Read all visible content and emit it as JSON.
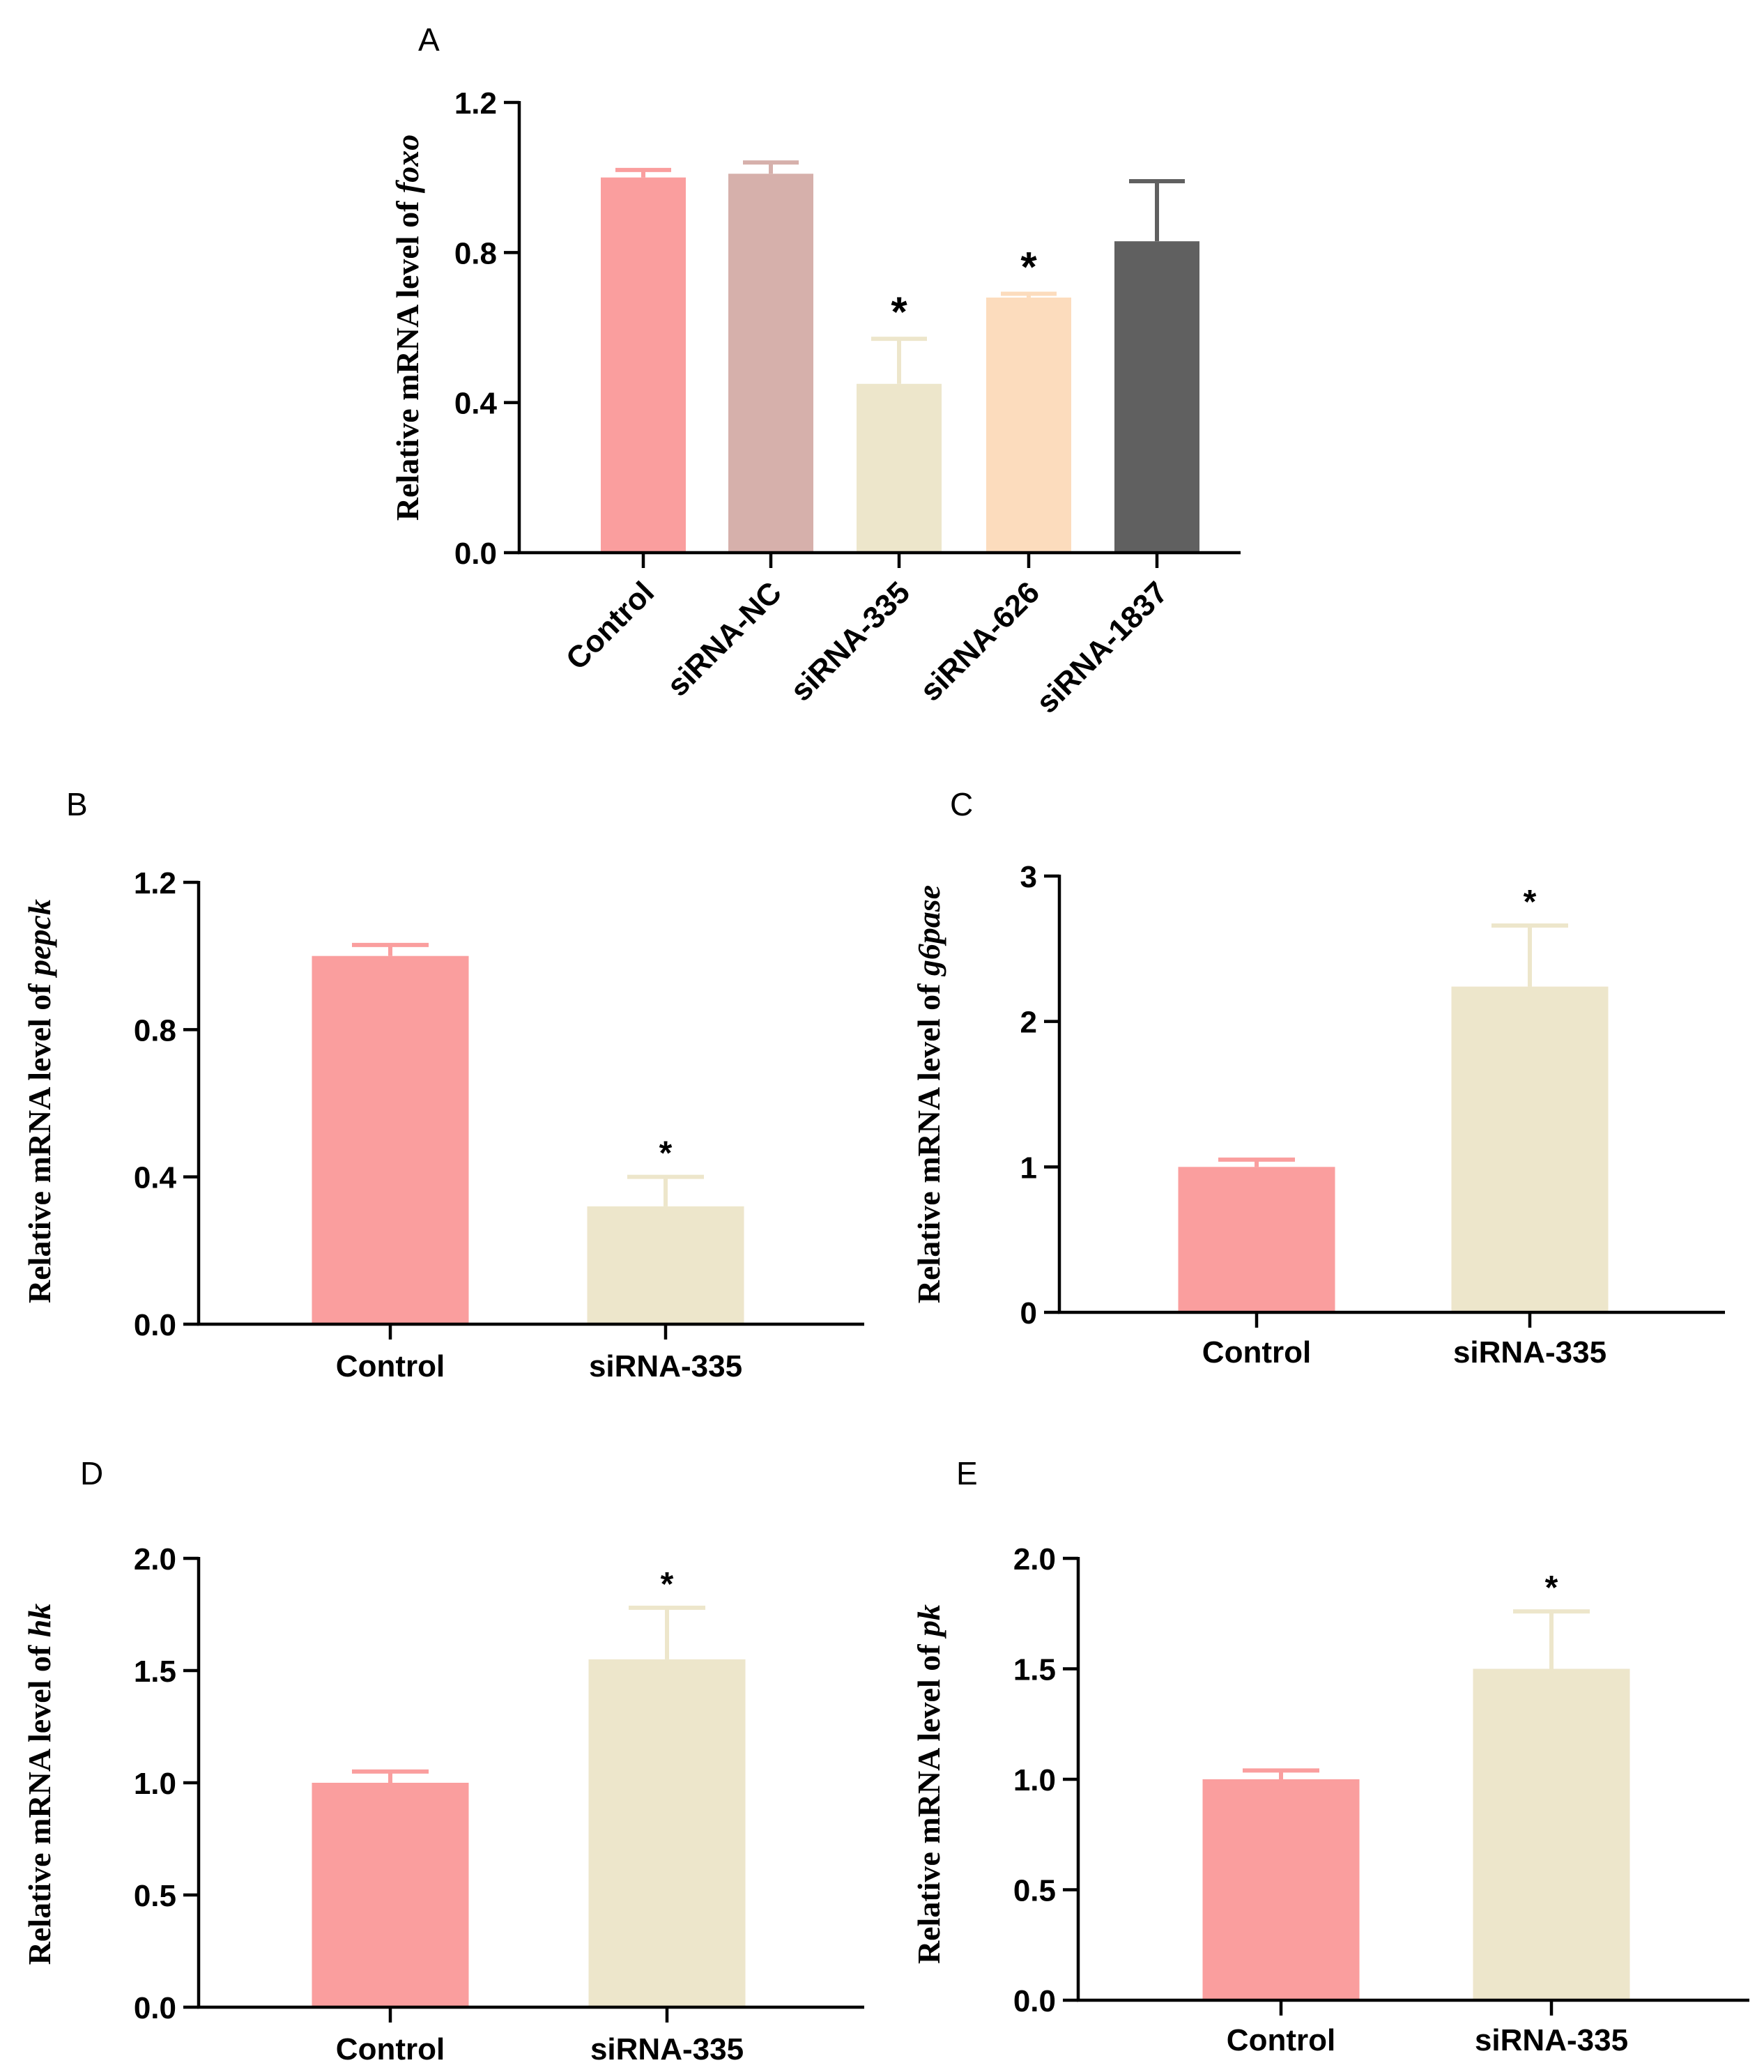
{
  "chart_data": [
    {
      "panel": "A",
      "type": "bar",
      "title": "",
      "xlabel": "",
      "ylabel_prefix": "Relative mRNA level of ",
      "ylabel_gene": "foxo",
      "categories": [
        "Control",
        "siRNA-NC",
        "siRNA-335",
        "siRNA-626",
        "siRNA-1837"
      ],
      "values": [
        1.0,
        1.01,
        0.45,
        0.68,
        0.83
      ],
      "errors": [
        0.02,
        0.03,
        0.12,
        0.01,
        0.16
      ],
      "significance": [
        "",
        "",
        "*",
        "*",
        ""
      ],
      "colors": [
        "#fa9e9e",
        "#d6b0ab",
        "#ede6cb",
        "#fcdcbd",
        "#606060"
      ],
      "ylim": [
        0,
        1.2
      ],
      "yticks": [
        0.0,
        0.4,
        0.8,
        1.2
      ],
      "ytick_labels": [
        "0.0",
        "0.4",
        "0.8",
        "1.2"
      ],
      "grid": false
    },
    {
      "panel": "B",
      "type": "bar",
      "title": "",
      "xlabel": "",
      "ylabel_prefix": "Relative mRNA level of ",
      "ylabel_gene": "pepck",
      "categories": [
        "Control",
        "siRNA-335"
      ],
      "values": [
        1.0,
        0.32
      ],
      "errors": [
        0.03,
        0.08
      ],
      "significance": [
        "",
        "*"
      ],
      "colors": [
        "#fa9e9e",
        "#ede6cb"
      ],
      "ylim": [
        0,
        1.2
      ],
      "yticks": [
        0.0,
        0.4,
        0.8,
        1.2
      ],
      "ytick_labels": [
        "0.0",
        "0.4",
        "0.8",
        "1.2"
      ],
      "grid": false
    },
    {
      "panel": "C",
      "type": "bar",
      "title": "",
      "xlabel": "",
      "ylabel_prefix": "Relative mRNA level of ",
      "ylabel_gene": "g6pase",
      "categories": [
        "Control",
        "siRNA-335"
      ],
      "values": [
        1.0,
        2.24
      ],
      "errors": [
        0.05,
        0.42
      ],
      "significance": [
        "",
        "*"
      ],
      "colors": [
        "#fa9e9e",
        "#ede6cb"
      ],
      "ylim": [
        0,
        3
      ],
      "yticks": [
        0,
        1,
        2,
        3
      ],
      "ytick_labels": [
        "0",
        "1",
        "2",
        "3"
      ],
      "grid": false
    },
    {
      "panel": "D",
      "type": "bar",
      "title": "",
      "xlabel": "",
      "ylabel_prefix": "Relative mRNA level of ",
      "ylabel_gene": "hk",
      "categories": [
        "Control",
        "siRNA-335"
      ],
      "values": [
        1.0,
        1.55
      ],
      "errors": [
        0.05,
        0.23
      ],
      "significance": [
        "",
        "*"
      ],
      "colors": [
        "#fa9e9e",
        "#ede6cb"
      ],
      "ylim": [
        0,
        2.0
      ],
      "yticks": [
        0.0,
        0.5,
        1.0,
        1.5,
        2.0
      ],
      "ytick_labels": [
        "0.0",
        "0.5",
        "1.0",
        "1.5",
        "2.0"
      ],
      "grid": false
    },
    {
      "panel": "E",
      "type": "bar",
      "title": "",
      "xlabel": "",
      "ylabel_prefix": "Relative mRNA level of ",
      "ylabel_gene": "pk",
      "categories": [
        "Control",
        "siRNA-335"
      ],
      "values": [
        1.0,
        1.5
      ],
      "errors": [
        0.04,
        0.26
      ],
      "significance": [
        "",
        "*"
      ],
      "colors": [
        "#fa9e9e",
        "#ede6cb"
      ],
      "ylim": [
        0,
        2.0
      ],
      "yticks": [
        0.0,
        0.5,
        1.0,
        1.5,
        2.0
      ],
      "ytick_labels": [
        "0.0",
        "0.5",
        "1.0",
        "1.5",
        "2.0"
      ],
      "grid": false
    }
  ]
}
